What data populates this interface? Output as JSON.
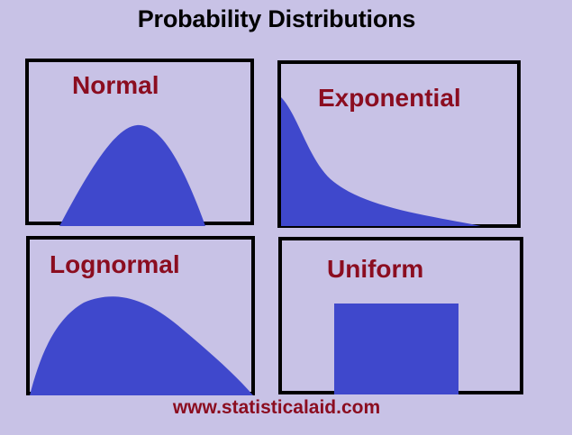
{
  "title": "Probability Distributions",
  "panels": {
    "normal": {
      "label": "Normal"
    },
    "exponential": {
      "label": "Exponential"
    },
    "lognormal": {
      "label": "Lognormal"
    },
    "uniform": {
      "label": "Uniform"
    }
  },
  "footer": {
    "url": "www.statisticalaid.com"
  },
  "colors": {
    "background": "#c8c2e6",
    "fill": "#3f48cc",
    "label": "#8b0d20",
    "border": "#000000"
  }
}
